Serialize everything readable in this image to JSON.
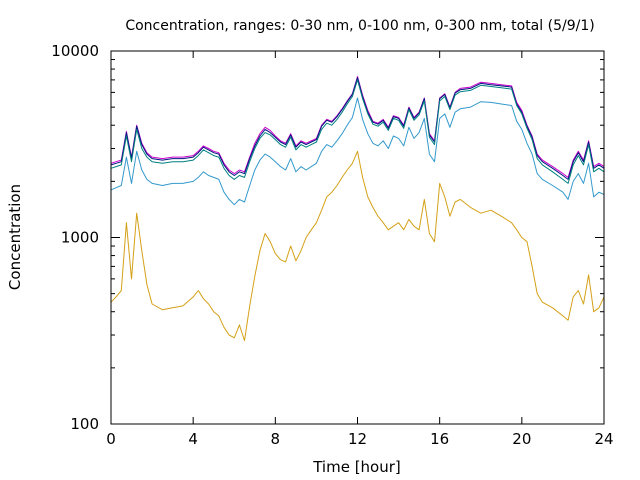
{
  "chart_data": {
    "type": "line",
    "title": "Concentration, ranges: 0-30 nm, 0-100 nm, 0-300 nm, total (5/9/1)",
    "xlabel": "Time [hour]",
    "ylabel": "Concentration",
    "xlim": [
      0,
      24
    ],
    "ylim": [
      100,
      10000
    ],
    "yscale": "log",
    "xticks": [
      0,
      4,
      8,
      12,
      16,
      20,
      24
    ],
    "yticks": [
      100,
      1000,
      10000
    ],
    "grid": false,
    "legend": "none",
    "x": [
      0,
      0.25,
      0.5,
      0.75,
      1,
      1.25,
      1.5,
      1.75,
      2,
      2.5,
      3,
      3.5,
      4,
      4.25,
      4.5,
      4.75,
      5,
      5.25,
      5.5,
      5.75,
      6,
      6.25,
      6.5,
      6.75,
      7,
      7.25,
      7.5,
      7.75,
      8,
      8.25,
      8.5,
      8.75,
      9,
      9.25,
      9.5,
      9.75,
      10,
      10.25,
      10.5,
      10.75,
      11,
      11.25,
      11.5,
      11.75,
      12,
      12.25,
      12.5,
      12.75,
      13,
      13.25,
      13.5,
      13.75,
      14,
      14.25,
      14.5,
      14.75,
      15,
      15.25,
      15.5,
      15.75,
      16,
      16.25,
      16.5,
      16.75,
      17,
      17.5,
      18,
      18.5,
      19,
      19.5,
      19.75,
      20,
      20.25,
      20.5,
      20.75,
      21,
      21.5,
      22,
      22.25,
      22.5,
      22.75,
      23,
      23.25,
      23.5,
      23.75,
      24
    ],
    "series": [
      {
        "color": "#cc00cc",
        "values": [
          2500,
          2550,
          2600,
          3700,
          2700,
          4000,
          3200,
          2850,
          2700,
          2650,
          2700,
          2700,
          2750,
          2900,
          3100,
          3000,
          2900,
          2850,
          2500,
          2300,
          2200,
          2300,
          2250,
          2700,
          3200,
          3600,
          3900,
          3750,
          3500,
          3300,
          3200,
          3600,
          3100,
          3300,
          3200,
          3300,
          3400,
          4000,
          4300,
          4200,
          4500,
          4900,
          5400,
          5900,
          7300,
          5800,
          4800,
          4200,
          4100,
          4300,
          3900,
          4500,
          4400,
          4000,
          5000,
          4400,
          4700,
          5600,
          3600,
          3300,
          5600,
          5900,
          5000,
          6000,
          6300,
          6400,
          6800,
          6700,
          6600,
          6500,
          5300,
          4800,
          4000,
          3500,
          2800,
          2600,
          2400,
          2200,
          2100,
          2600,
          2900,
          2600,
          3300,
          2400,
          2500,
          2400
        ]
      },
      {
        "color": "#001880",
        "values": [
          2450,
          2500,
          2550,
          3650,
          2650,
          3950,
          3150,
          2800,
          2650,
          2600,
          2650,
          2650,
          2700,
          2850,
          3050,
          2950,
          2850,
          2800,
          2450,
          2250,
          2150,
          2250,
          2200,
          2650,
          3100,
          3500,
          3800,
          3650,
          3450,
          3250,
          3150,
          3550,
          3050,
          3250,
          3150,
          3250,
          3350,
          3950,
          4250,
          4150,
          4450,
          4850,
          5350,
          5850,
          7200,
          5700,
          4700,
          4150,
          4050,
          4250,
          3850,
          4450,
          4350,
          3950,
          4950,
          4350,
          4650,
          5550,
          3550,
          3250,
          5550,
          5850,
          4950,
          5950,
          6200,
          6300,
          6700,
          6600,
          6500,
          6400,
          5200,
          4700,
          3950,
          3450,
          2750,
          2550,
          2350,
          2150,
          2050,
          2550,
          2850,
          2550,
          3250,
          2350,
          2450,
          2350
        ]
      },
      {
        "color": "#008080",
        "values": [
          2350,
          2400,
          2450,
          3500,
          2550,
          3800,
          3000,
          2700,
          2550,
          2500,
          2550,
          2550,
          2600,
          2750,
          2950,
          2850,
          2750,
          2700,
          2350,
          2150,
          2050,
          2150,
          2100,
          2550,
          3000,
          3400,
          3650,
          3550,
          3350,
          3150,
          3050,
          3450,
          2950,
          3150,
          3050,
          3150,
          3250,
          3800,
          4100,
          4000,
          4300,
          4700,
          5200,
          5700,
          7000,
          5550,
          4600,
          4050,
          3950,
          4150,
          3750,
          4350,
          4250,
          3850,
          4850,
          4250,
          4550,
          5400,
          3450,
          3150,
          5400,
          5700,
          4850,
          5800,
          6050,
          6150,
          6550,
          6450,
          6350,
          6250,
          5100,
          4600,
          3850,
          3350,
          2650,
          2450,
          2250,
          2050,
          1950,
          2450,
          2750,
          2450,
          3150,
          2250,
          2350,
          2250
        ]
      },
      {
        "color": "#3399cc",
        "values": [
          1800,
          1850,
          1900,
          2700,
          1950,
          2900,
          2300,
          2050,
          1950,
          1900,
          1950,
          1950,
          2000,
          2100,
          2250,
          2150,
          2100,
          2050,
          1750,
          1600,
          1500,
          1600,
          1550,
          1900,
          2300,
          2600,
          2800,
          2700,
          2550,
          2400,
          2300,
          2650,
          2250,
          2400,
          2300,
          2400,
          2500,
          2900,
          3150,
          3050,
          3300,
          3600,
          4000,
          4400,
          5600,
          4300,
          3600,
          3200,
          3100,
          3300,
          3000,
          3500,
          3400,
          3100,
          3900,
          3400,
          3650,
          4350,
          2800,
          2550,
          4350,
          4600,
          3900,
          4700,
          4900,
          5000,
          5350,
          5300,
          5200,
          5100,
          4200,
          3800,
          3200,
          2800,
          2200,
          2050,
          1900,
          1750,
          1600,
          2000,
          2200,
          1950,
          2500,
          1650,
          1750,
          1700
        ]
      },
      {
        "color": "#d4a017",
        "values": [
          450,
          480,
          520,
          1200,
          600,
          1350,
          850,
          560,
          440,
          410,
          420,
          430,
          480,
          520,
          470,
          440,
          400,
          380,
          330,
          300,
          290,
          340,
          280,
          430,
          620,
          850,
          1050,
          950,
          820,
          760,
          740,
          900,
          750,
          850,
          1000,
          1100,
          1200,
          1400,
          1650,
          1750,
          1900,
          2100,
          2300,
          2500,
          2900,
          2100,
          1650,
          1450,
          1300,
          1200,
          1100,
          1150,
          1200,
          1100,
          1250,
          1150,
          1100,
          1600,
          1050,
          950,
          1950,
          1650,
          1300,
          1550,
          1600,
          1450,
          1350,
          1400,
          1300,
          1200,
          1100,
          1000,
          950,
          700,
          500,
          450,
          420,
          380,
          360,
          480,
          520,
          440,
          630,
          400,
          420,
          480
        ]
      }
    ]
  }
}
